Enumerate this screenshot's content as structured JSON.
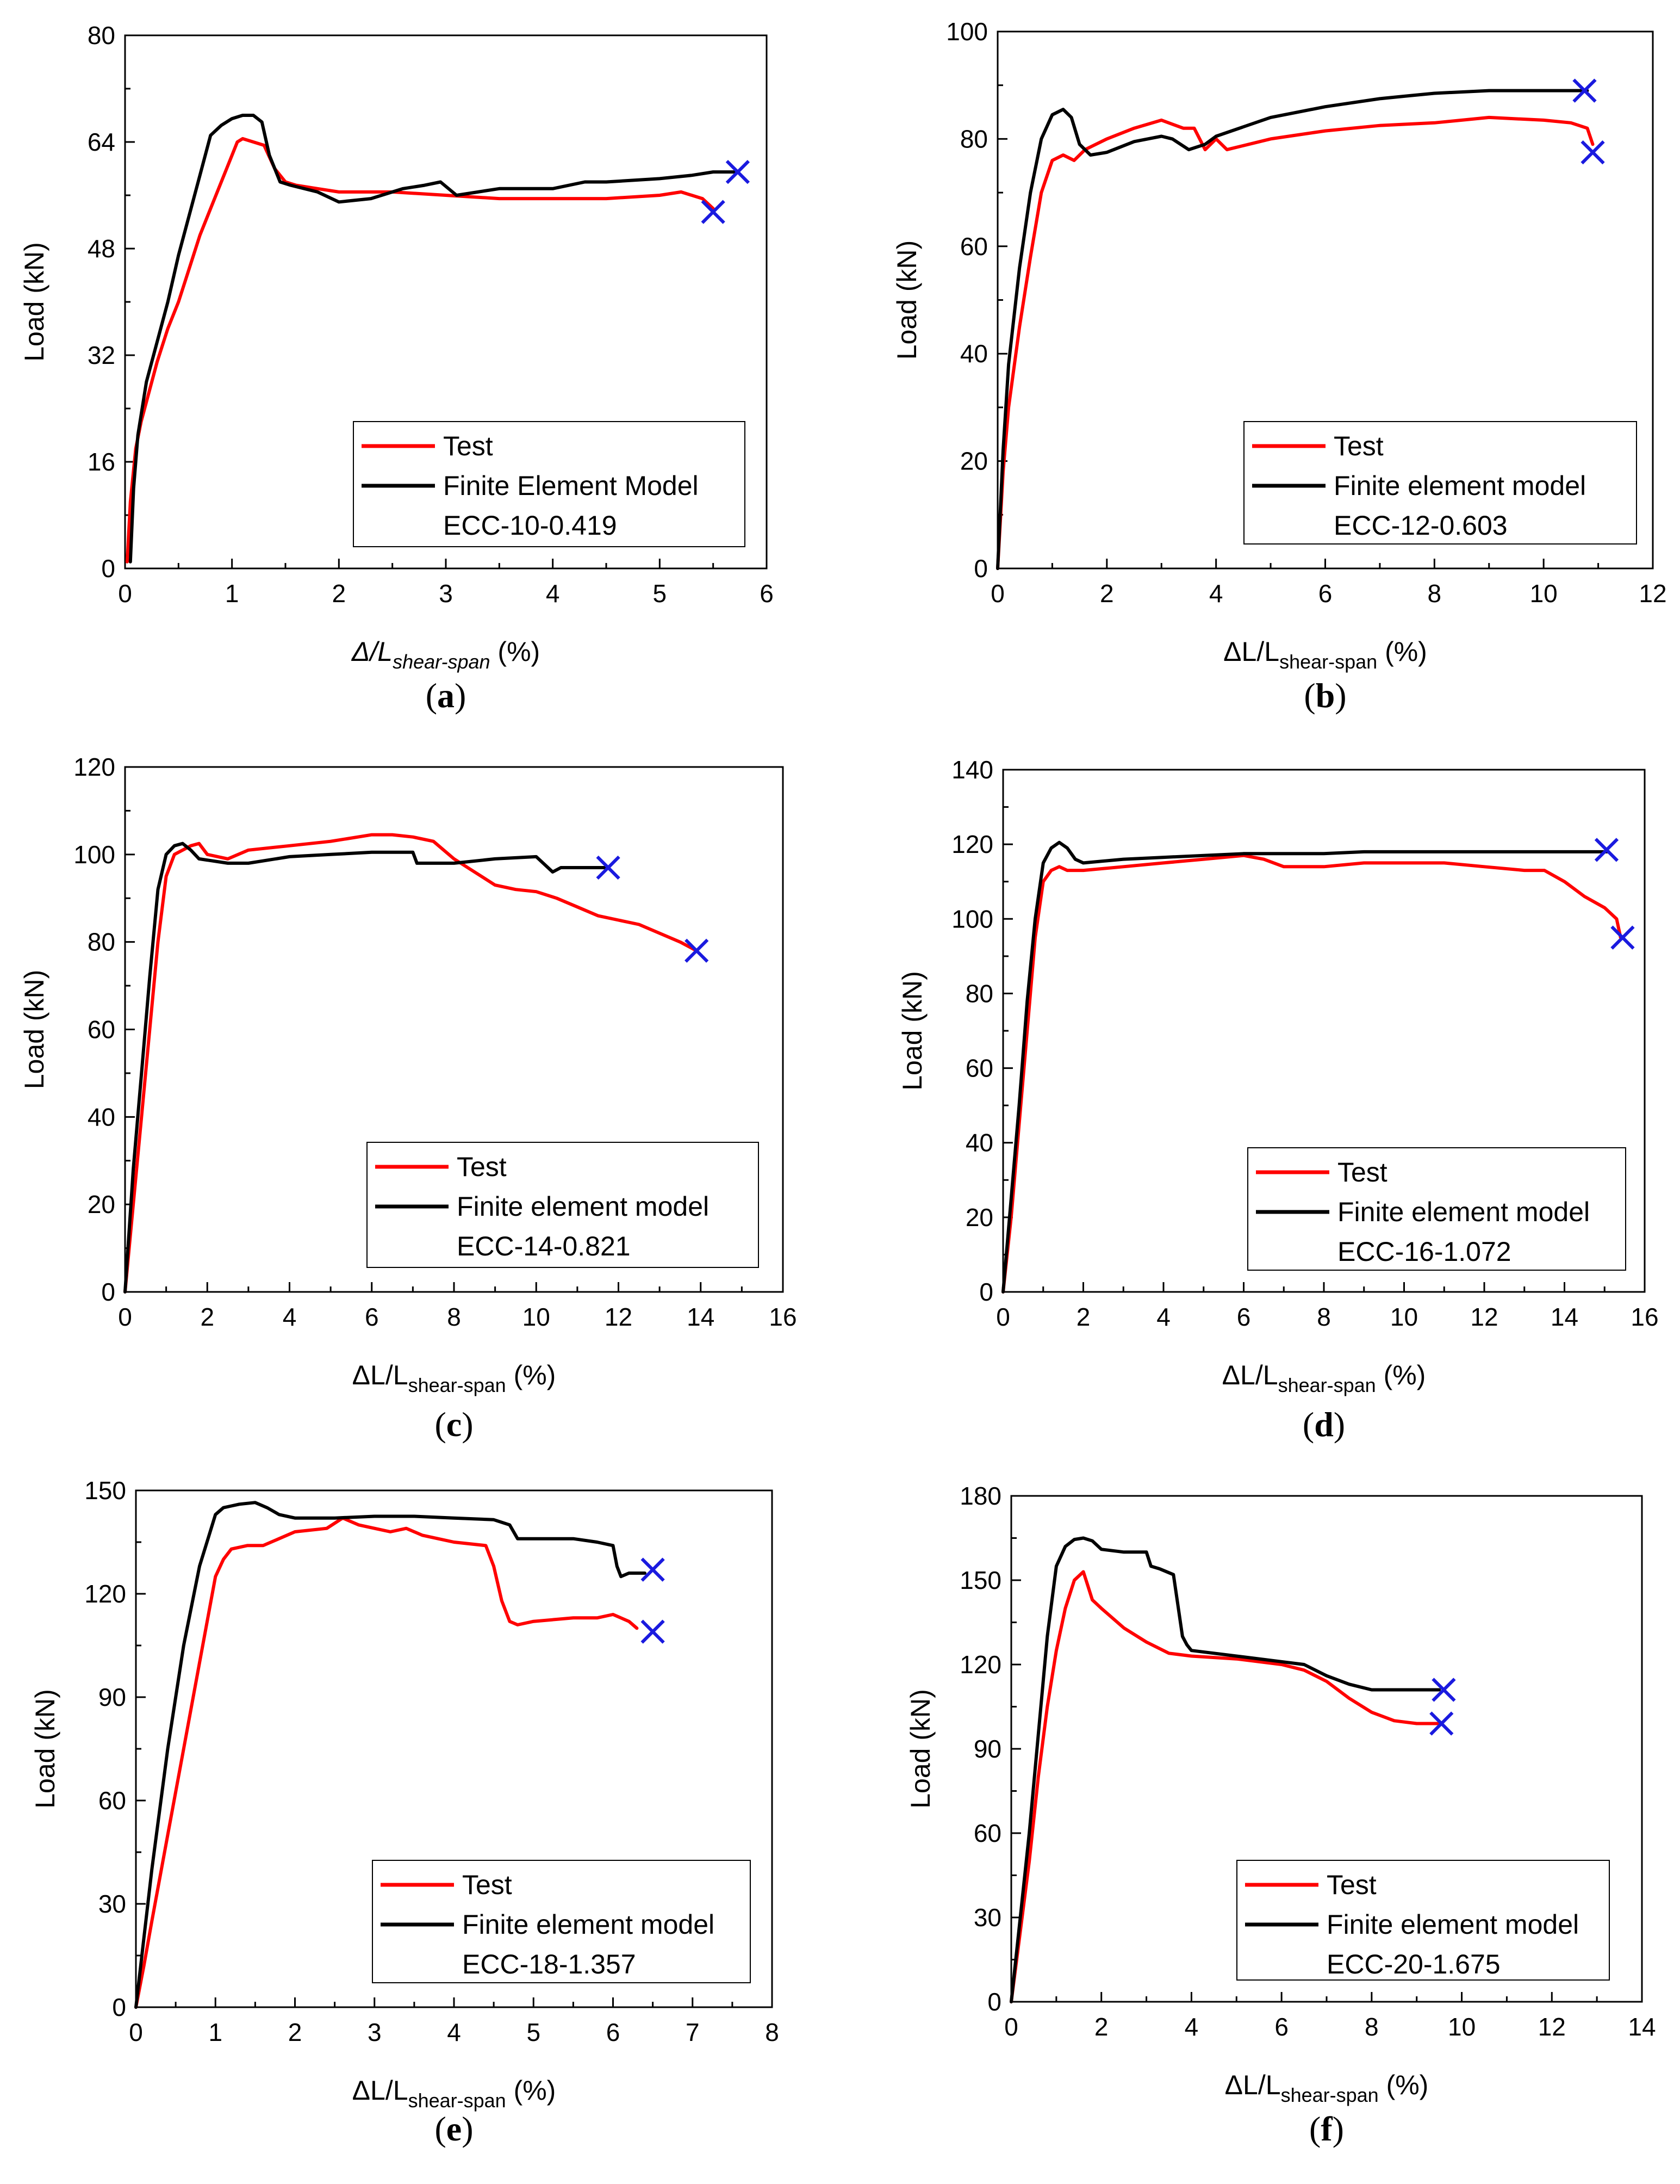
{
  "colors": {
    "test": "#ff0000",
    "fem": "#000000",
    "marker": "#1a1adf",
    "axis": "#000000"
  },
  "chart_data": [
    {
      "type": "line",
      "panel": "(a)",
      "caption_letter": "a",
      "specimen": "ECC-10-0.419",
      "xlabel_main": "Δ/L",
      "xlabel_sub": "shear-span",
      "xlabel_unit": " (%)",
      "xlabel_italic": true,
      "ylabel": "Load (kN)",
      "xlim": [
        0,
        6
      ],
      "ylim": [
        0,
        80
      ],
      "xticks": [
        0,
        1,
        2,
        3,
        4,
        5,
        6
      ],
      "yticks": [
        0,
        16,
        32,
        48,
        64,
        80
      ],
      "x_minor": 0.5,
      "y_minor": 8,
      "legend": [
        "Test",
        "Finite Element Model"
      ],
      "legend_placement": "bottom-right",
      "series": [
        {
          "name": "Test",
          "role": "test",
          "x": [
            0.02,
            0.05,
            0.1,
            0.15,
            0.2,
            0.3,
            0.4,
            0.5,
            0.6,
            0.7,
            0.8,
            0.9,
            1.0,
            1.05,
            1.1,
            1.2,
            1.3,
            1.4,
            1.5,
            1.6,
            1.8,
            2.0,
            2.5,
            3.0,
            3.5,
            4.0,
            4.5,
            5.0,
            5.2,
            5.4,
            5.5
          ],
          "y": [
            1,
            10,
            18,
            22,
            25,
            31,
            36,
            40,
            45,
            50,
            54,
            58,
            62,
            64,
            64.5,
            64,
            63.5,
            60,
            58,
            57.5,
            57,
            56.5,
            56.5,
            56,
            55.5,
            55.5,
            55.5,
            56,
            56.5,
            55.5,
            54
          ]
        },
        {
          "name": "Finite Element Model",
          "role": "fem",
          "x": [
            0.05,
            0.08,
            0.12,
            0.2,
            0.3,
            0.4,
            0.5,
            0.6,
            0.7,
            0.8,
            0.9,
            1.0,
            1.1,
            1.2,
            1.28,
            1.35,
            1.45,
            1.55,
            1.8,
            2.0,
            2.3,
            2.6,
            2.8,
            2.95,
            3.1,
            3.5,
            4.0,
            4.3,
            4.5,
            5.0,
            5.3,
            5.5,
            5.72
          ],
          "y": [
            1,
            12,
            20,
            28,
            34,
            40,
            47,
            53,
            59,
            65,
            66.5,
            67.5,
            68,
            68,
            67,
            62,
            58,
            57.5,
            56.5,
            55,
            55.5,
            57,
            57.5,
            58,
            56,
            57,
            57,
            58,
            58,
            58.5,
            59,
            59.5,
            59.5
          ]
        }
      ],
      "end_markers": [
        {
          "x": 5.73,
          "y": 59.5
        },
        {
          "x": 5.5,
          "y": 53.5
        }
      ]
    },
    {
      "type": "line",
      "panel": "(b)",
      "caption_letter": "b",
      "specimen": "ECC-12-0.603",
      "xlabel_main": "ΔL/L",
      "xlabel_sub": "shear-span",
      "xlabel_unit": " (%)",
      "xlabel_italic": false,
      "ylabel": "Load (kN)",
      "xlim": [
        0,
        12
      ],
      "ylim": [
        0,
        100
      ],
      "xticks": [
        0,
        2,
        4,
        6,
        8,
        10,
        12
      ],
      "yticks": [
        0,
        20,
        40,
        60,
        80,
        100
      ],
      "x_minor": 1,
      "y_minor": 10,
      "legend": [
        "Test",
        "Finite element model"
      ],
      "legend_placement": "bottom-right",
      "series": [
        {
          "name": "Test",
          "role": "test",
          "x": [
            0,
            0.1,
            0.2,
            0.4,
            0.6,
            0.8,
            1.0,
            1.2,
            1.4,
            1.6,
            2.0,
            2.5,
            3.0,
            3.4,
            3.6,
            3.8,
            4.0,
            4.2,
            5.0,
            6.0,
            7.0,
            8.0,
            9.0,
            10.0,
            10.5,
            10.8,
            10.9
          ],
          "y": [
            0,
            18,
            30,
            45,
            58,
            70,
            76,
            77,
            76,
            78,
            80,
            82,
            83.5,
            82,
            82,
            78,
            80,
            78,
            80,
            81.5,
            82.5,
            83,
            84,
            83.5,
            83,
            82,
            79
          ]
        },
        {
          "name": "Finite element model",
          "role": "fem",
          "x": [
            0,
            0.1,
            0.2,
            0.4,
            0.6,
            0.8,
            1.0,
            1.2,
            1.35,
            1.5,
            1.7,
            2.0,
            2.5,
            3.0,
            3.2,
            3.5,
            3.8,
            4.0,
            5.0,
            6.0,
            7.0,
            7.5,
            8.0,
            9.0,
            10.0,
            10.8
          ],
          "y": [
            0,
            22,
            38,
            56,
            70,
            80,
            84.5,
            85.5,
            84,
            79,
            77,
            77.5,
            79.5,
            80.5,
            80,
            78,
            79,
            80.5,
            84,
            86,
            87.5,
            88,
            88.5,
            89,
            89,
            89
          ]
        }
      ],
      "end_markers": [
        {
          "x": 10.75,
          "y": 89
        },
        {
          "x": 10.9,
          "y": 77.5
        }
      ]
    },
    {
      "type": "line",
      "panel": "(c)",
      "caption_letter": "c",
      "specimen": "ECC-14-0.821",
      "xlabel_main": "ΔL/L",
      "xlabel_sub": "shear-span",
      "xlabel_unit": " (%)",
      "xlabel_italic": false,
      "ylabel": "Load (kN)",
      "xlim": [
        0,
        16
      ],
      "ylim": [
        0,
        120
      ],
      "xticks": [
        0,
        2,
        4,
        6,
        8,
        10,
        12,
        14,
        16
      ],
      "yticks": [
        0,
        20,
        40,
        60,
        80,
        100,
        120
      ],
      "x_minor": 1,
      "y_minor": 10,
      "legend": [
        "Test",
        "Finite element model"
      ],
      "legend_placement": "bottom-right",
      "series": [
        {
          "name": "Test",
          "role": "test",
          "x": [
            0,
            0.2,
            0.4,
            0.6,
            0.8,
            1.0,
            1.2,
            1.4,
            1.6,
            1.8,
            2.0,
            2.5,
            3.0,
            4.0,
            5.0,
            6.0,
            6.5,
            7.0,
            7.5,
            8.0,
            8.5,
            9.0,
            9.5,
            10.0,
            10.5,
            11.0,
            11.5,
            12.0,
            12.5,
            13.0,
            13.5,
            13.9
          ],
          "y": [
            0,
            20,
            40,
            60,
            80,
            95,
            100,
            101,
            102,
            102.5,
            100,
            99,
            101,
            102,
            103,
            104.5,
            104.5,
            104,
            103,
            99,
            96,
            93,
            92,
            91.5,
            90,
            88,
            86,
            85,
            84,
            82,
            80,
            78
          ]
        },
        {
          "name": "Finite element model",
          "role": "fem",
          "x": [
            0,
            0.2,
            0.4,
            0.6,
            0.8,
            1.0,
            1.2,
            1.4,
            1.6,
            1.8,
            2.5,
            3.0,
            4.0,
            5.0,
            6.0,
            7.0,
            7.1,
            7.5,
            8.0,
            9.0,
            10.0,
            10.4,
            10.6,
            11.0,
            11.7
          ],
          "y": [
            0,
            28,
            50,
            72,
            92,
            100,
            102,
            102.5,
            101,
            99,
            98,
            98,
            99.5,
            100,
            100.5,
            100.5,
            98,
            98,
            98,
            99,
            99.5,
            96,
            97,
            97,
            97
          ]
        }
      ],
      "end_markers": [
        {
          "x": 11.75,
          "y": 97
        },
        {
          "x": 13.9,
          "y": 78
        }
      ]
    },
    {
      "type": "line",
      "panel": "(d)",
      "caption_letter": "d",
      "specimen": "ECC-16-1.072",
      "xlabel_main": "ΔL/L",
      "xlabel_sub": "shear-span",
      "xlabel_unit": " (%)",
      "xlabel_italic": false,
      "ylabel": "Load (kN)",
      "xlim": [
        0,
        16
      ],
      "ylim": [
        0,
        140
      ],
      "xticks": [
        0,
        2,
        4,
        6,
        8,
        10,
        12,
        14,
        16
      ],
      "yticks": [
        0,
        20,
        40,
        60,
        80,
        100,
        120,
        140
      ],
      "x_minor": 1,
      "y_minor": 10,
      "legend": [
        "Test",
        "Finite element model"
      ],
      "legend_placement": "bottom-right",
      "series": [
        {
          "name": "Test",
          "role": "test",
          "x": [
            0,
            0.2,
            0.4,
            0.6,
            0.8,
            1.0,
            1.2,
            1.4,
            1.6,
            2.0,
            3.0,
            4.0,
            5.0,
            6.0,
            6.5,
            7.0,
            8.0,
            9.0,
            10.0,
            11.0,
            12.0,
            13.0,
            13.5,
            14.0,
            14.5,
            15.0,
            15.3,
            15.4
          ],
          "y": [
            0,
            20,
            45,
            70,
            95,
            110,
            113,
            114,
            113,
            113,
            114,
            115,
            116,
            117,
            116,
            114,
            114,
            115,
            115,
            115,
            114,
            113,
            113,
            110,
            106,
            103,
            100,
            95
          ]
        },
        {
          "name": "Finite element model",
          "role": "fem",
          "x": [
            0,
            0.2,
            0.4,
            0.6,
            0.8,
            1.0,
            1.2,
            1.4,
            1.6,
            1.8,
            2.0,
            3.0,
            4.0,
            5.0,
            6.0,
            7.0,
            8.0,
            9.0,
            10.0,
            11.0,
            12.0,
            13.0,
            14.0,
            15.0,
            15.1
          ],
          "y": [
            0,
            25,
            50,
            78,
            100,
            115,
            119,
            120.5,
            119,
            116,
            115,
            116,
            116.5,
            117,
            117.5,
            117.5,
            117.5,
            118,
            118,
            118,
            118,
            118,
            118,
            118,
            118
          ]
        }
      ],
      "end_markers": [
        {
          "x": 15.05,
          "y": 118.5
        },
        {
          "x": 15.45,
          "y": 95
        }
      ]
    },
    {
      "type": "line",
      "panel": "(e)",
      "caption_letter": "e",
      "specimen": "ECC-18-1.357",
      "xlabel_main": "ΔL/L",
      "xlabel_sub": "shear-span",
      "xlabel_unit": " (%)",
      "xlabel_italic": false,
      "ylabel": "Load (kN)",
      "xlim": [
        0,
        8
      ],
      "ylim": [
        0,
        150
      ],
      "xticks": [
        0,
        1,
        2,
        3,
        4,
        5,
        6,
        7,
        8
      ],
      "yticks": [
        0,
        30,
        60,
        90,
        120,
        150
      ],
      "x_minor": 0.5,
      "y_minor": 15,
      "legend": [
        "Test",
        "Finite element model"
      ],
      "legend_placement": "bottom-right",
      "series": [
        {
          "name": "Test",
          "role": "test",
          "x": [
            0,
            0.1,
            0.2,
            0.4,
            0.6,
            0.8,
            1.0,
            1.1,
            1.2,
            1.4,
            1.6,
            2.0,
            2.4,
            2.6,
            2.8,
            3.0,
            3.2,
            3.4,
            3.6,
            3.8,
            4.0,
            4.4,
            4.5,
            4.6,
            4.7,
            4.8,
            5.0,
            5.5,
            5.8,
            6.0,
            6.2,
            6.3
          ],
          "y": [
            0,
            12,
            25,
            50,
            75,
            100,
            125,
            130,
            133,
            134,
            134,
            138,
            139,
            142,
            140,
            139,
            138,
            139,
            137,
            136,
            135,
            134,
            128,
            118,
            112,
            111,
            112,
            113,
            113,
            114,
            112,
            110
          ]
        },
        {
          "name": "Finite element model",
          "role": "fem",
          "x": [
            0,
            0.1,
            0.2,
            0.4,
            0.6,
            0.8,
            1.0,
            1.1,
            1.2,
            1.3,
            1.5,
            1.65,
            1.8,
            2.0,
            2.5,
            3.0,
            3.5,
            4.0,
            4.5,
            4.7,
            4.8,
            5.0,
            5.5,
            5.8,
            6.0,
            6.05,
            6.1,
            6.2,
            6.3,
            6.4
          ],
          "y": [
            0,
            20,
            40,
            75,
            105,
            128,
            143,
            145,
            145.5,
            146,
            146.5,
            145,
            143,
            142,
            142,
            142.5,
            142.5,
            142,
            141.5,
            140,
            136,
            136,
            136,
            135,
            134,
            128,
            125,
            126,
            126,
            126
          ]
        }
      ],
      "end_markers": [
        {
          "x": 6.5,
          "y": 127
        },
        {
          "x": 6.5,
          "y": 109
        }
      ]
    },
    {
      "type": "line",
      "panel": "(f)",
      "caption_letter": "f",
      "specimen": "ECC-20-1.675",
      "xlabel_main": "ΔL/L",
      "xlabel_sub": "shear-span",
      "xlabel_unit": " (%)",
      "xlabel_italic": false,
      "ylabel": "Load (kN)",
      "xlim": [
        0,
        14
      ],
      "ylim": [
        0,
        180
      ],
      "xticks": [
        0,
        2,
        4,
        6,
        8,
        10,
        12,
        14
      ],
      "yticks": [
        0,
        30,
        60,
        90,
        120,
        150,
        180
      ],
      "x_minor": 1,
      "y_minor": 15,
      "legend": [
        "Test",
        "Finite element model"
      ],
      "legend_placement": "bottom-right",
      "series": [
        {
          "name": "Test",
          "role": "test",
          "x": [
            0,
            0.2,
            0.4,
            0.6,
            0.8,
            1.0,
            1.2,
            1.4,
            1.6,
            1.7,
            1.8,
            2.0,
            2.5,
            3.0,
            3.5,
            4.0,
            5.0,
            6.0,
            6.5,
            7.0,
            7.5,
            8.0,
            8.5,
            9.0,
            9.5
          ],
          "y": [
            0,
            25,
            50,
            80,
            105,
            125,
            140,
            150,
            153,
            148,
            143,
            140,
            133,
            128,
            124,
            123,
            122,
            120,
            118,
            114,
            108,
            103,
            100,
            99,
            99
          ]
        },
        {
          "name": "Finite element model",
          "role": "fem",
          "x": [
            0,
            0.2,
            0.4,
            0.6,
            0.8,
            1.0,
            1.2,
            1.4,
            1.6,
            1.8,
            2.0,
            2.5,
            3.0,
            3.1,
            3.3,
            3.6,
            3.8,
            3.9,
            4.0,
            4.5,
            5.0,
            6.0,
            6.5,
            7.0,
            7.5,
            8.0,
            8.5,
            9.0,
            9.5
          ],
          "y": [
            0,
            30,
            60,
            95,
            130,
            155,
            162,
            164.5,
            165,
            164,
            161,
            160,
            160,
            155,
            154,
            152,
            130,
            127,
            125,
            124,
            123,
            121,
            120,
            116,
            113,
            111,
            111,
            111,
            111
          ]
        }
      ],
      "end_markers": [
        {
          "x": 9.6,
          "y": 111
        },
        {
          "x": 9.55,
          "y": 99
        }
      ]
    }
  ]
}
